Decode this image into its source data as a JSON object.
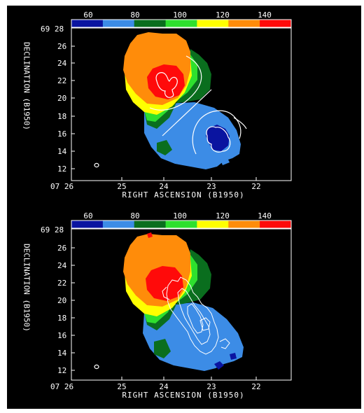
{
  "colorbar": {
    "ticks": [
      "60",
      "80",
      "100",
      "120",
      "140"
    ],
    "colors": [
      "#0a14a0",
      "#3c8ce6",
      "#0a6e1e",
      "#2ee02e",
      "#ffff00",
      "#ff8c0a",
      "#ff0a0a"
    ]
  },
  "axes": {
    "ylabel": "DECLINATION (B1950)",
    "xlabel": "RIGHT ASCENSION (B1950)",
    "y_top_label": "69 28",
    "x_left_label": "07 26",
    "yticks": [
      "26",
      "24",
      "22",
      "20",
      "18",
      "16",
      "14",
      "12"
    ],
    "xticks": [
      "25",
      "24",
      "23",
      "22"
    ]
  },
  "panels": [
    {
      "name": "top",
      "contours": "smooth-rotation-model"
    },
    {
      "name": "bottom",
      "contours": "jagged-emission-contours"
    }
  ],
  "region_colors": {
    "background": "#000000",
    "blue": "#3c8ce6",
    "dark_blue": "#0a14a0",
    "dark_green": "#0a6e1e",
    "green": "#2ee02e",
    "yellow": "#ffff00",
    "orange": "#ff8c0a",
    "red": "#ff0a0a",
    "contour": "#ffffff"
  }
}
